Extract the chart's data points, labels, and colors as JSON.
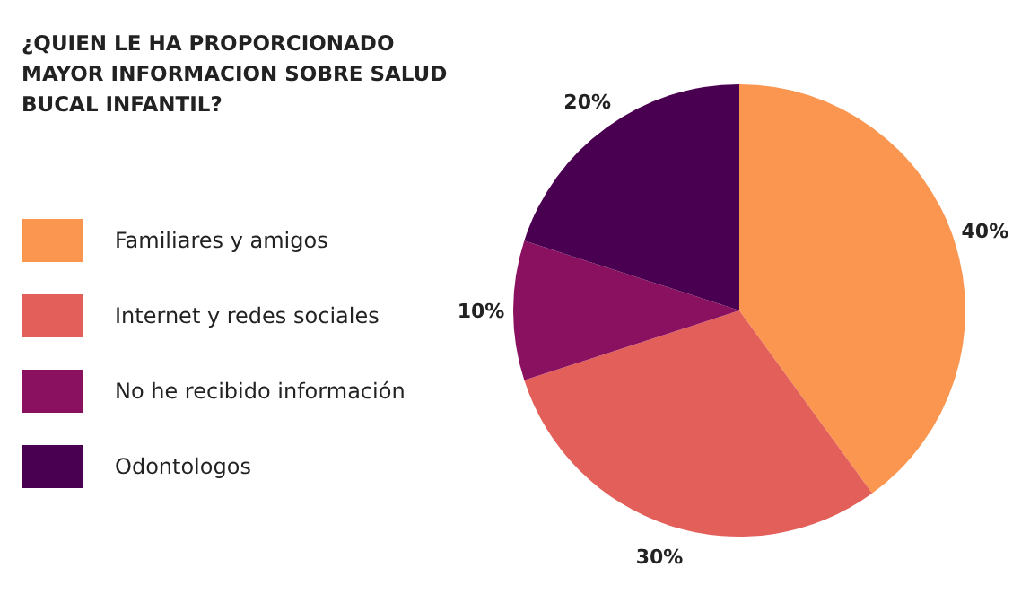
{
  "chart_data": {
    "type": "pie",
    "title": "¿QUIEN LE HA PROPORCIONADO MAYOR INFORMACION SOBRE SALUD BUCAL INFANTIL?",
    "categories": [
      "Familiares y amigos",
      "Internet y redes sociales",
      "No he recibido información",
      "Odontologos"
    ],
    "values": [
      40,
      30,
      10,
      20
    ],
    "colors": [
      "#fb9650",
      "#e35f5a",
      "#8a1060",
      "#4a0050"
    ],
    "value_labels": [
      "40%",
      "30%",
      "10%",
      "20%"
    ],
    "legend": "left"
  }
}
